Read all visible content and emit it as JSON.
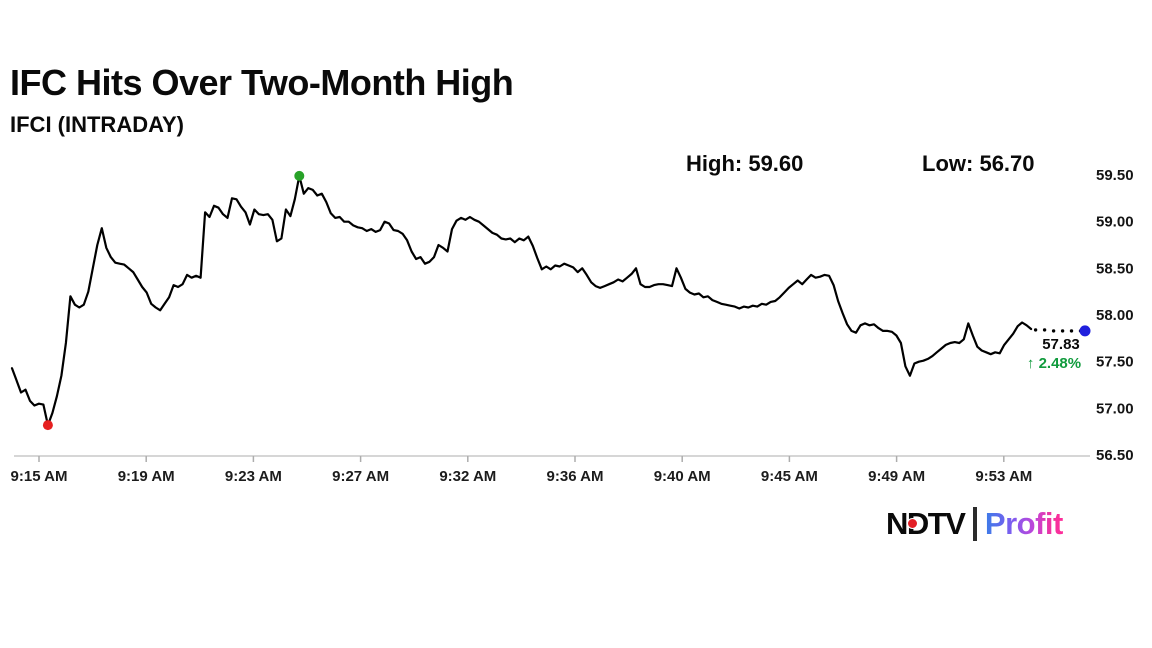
{
  "header": {
    "title": "IFC Hits Over Two-Month High",
    "subtitle": "IFCI (INTRADAY)"
  },
  "stats": {
    "high_label": "High:",
    "high_value": "59.60",
    "low_label": "Low:",
    "low_value": "56.70"
  },
  "annotation": {
    "last_price": "57.83",
    "change_arrow": "↑",
    "change_percent": "2.48%"
  },
  "logo": {
    "brand": "NDTV",
    "product": "Profit"
  },
  "colors": {
    "line": "#000000",
    "axis_line": "#c9c9c9",
    "tick": "#adadad",
    "low_marker": "#e62020",
    "high_marker": "#28a228",
    "end_marker": "#2020dd",
    "change_green": "#119b3d",
    "label_text": "#1a1a1a",
    "profit_gradient": [
      "#3b7ce8",
      "#a14ce8",
      "#f0329e",
      "#ff2d9a"
    ]
  },
  "chart_data": {
    "type": "line",
    "title": "IFCI (INTRADAY)",
    "xlabel": "",
    "ylabel": "",
    "ylim": [
      56.5,
      59.5
    ],
    "grid": false,
    "legend": "none",
    "y_ticks": [
      "59.50",
      "59.00",
      "58.50",
      "58.00",
      "57.50",
      "57.00",
      "56.50"
    ],
    "x_ticks": [
      "9:15 AM",
      "9:19 AM",
      "9:23 AM",
      "9:27 AM",
      "9:32 AM",
      "9:36 AM",
      "9:40 AM",
      "9:45 AM",
      "9:49 AM",
      "9:53 AM"
    ],
    "session_high": 59.6,
    "session_low": 56.7,
    "last_price": 57.83,
    "change_percent": 2.48,
    "dotted_tail": 12,
    "prices": [
      57.43,
      57.3,
      57.17,
      57.2,
      57.08,
      57.03,
      57.05,
      57.04,
      56.82,
      56.95,
      57.13,
      57.35,
      57.7,
      58.2,
      58.11,
      58.08,
      58.11,
      58.25,
      58.5,
      58.75,
      58.93,
      58.72,
      58.62,
      58.56,
      58.55,
      58.54,
      58.5,
      58.46,
      58.38,
      58.3,
      58.24,
      58.12,
      58.08,
      58.05,
      58.12,
      58.19,
      58.32,
      58.3,
      58.33,
      58.43,
      58.4,
      58.42,
      58.4,
      59.1,
      59.05,
      59.17,
      59.15,
      59.08,
      59.04,
      59.25,
      59.24,
      59.16,
      59.1,
      58.97,
      59.13,
      59.08,
      59.07,
      59.08,
      59.02,
      58.79,
      58.82,
      59.13,
      59.06,
      59.24,
      59.49,
      59.3,
      59.36,
      59.34,
      59.28,
      59.3,
      59.21,
      59.09,
      59.04,
      59.05,
      59.0,
      59.0,
      58.96,
      58.94,
      58.93,
      58.9,
      58.92,
      58.89,
      58.91,
      59.0,
      58.98,
      58.91,
      58.9,
      58.87,
      58.8,
      58.68,
      58.6,
      58.62,
      58.55,
      58.57,
      58.62,
      58.75,
      58.72,
      58.68,
      58.92,
      59.01,
      59.04,
      59.02,
      59.05,
      59.02,
      59.0,
      58.96,
      58.92,
      58.88,
      58.86,
      58.82,
      58.81,
      58.82,
      58.78,
      58.82,
      58.8,
      58.84,
      58.74,
      58.61,
      58.49,
      58.52,
      58.49,
      58.53,
      58.52,
      58.55,
      58.53,
      58.51,
      58.46,
      58.5,
      58.43,
      58.35,
      58.31,
      58.29,
      58.31,
      58.33,
      58.35,
      58.38,
      58.36,
      58.4,
      58.44,
      58.5,
      58.33,
      58.3,
      58.3,
      58.32,
      58.33,
      58.33,
      58.32,
      58.31,
      58.5,
      58.4,
      58.28,
      58.24,
      58.22,
      58.23,
      58.19,
      58.2,
      58.16,
      58.14,
      58.12,
      58.11,
      58.1,
      58.09,
      58.07,
      58.09,
      58.08,
      58.1,
      58.09,
      58.12,
      58.11,
      58.14,
      58.15,
      58.19,
      58.24,
      58.29,
      58.33,
      58.37,
      58.33,
      58.38,
      58.43,
      58.4,
      58.41,
      58.43,
      58.42,
      58.32,
      58.15,
      58.02,
      57.9,
      57.83,
      57.81,
      57.89,
      57.91,
      57.89,
      57.9,
      57.86,
      57.83,
      57.83,
      57.82,
      57.78,
      57.7,
      57.45,
      57.35,
      57.48,
      57.5,
      57.51,
      57.53,
      57.56,
      57.6,
      57.64,
      57.68,
      57.7,
      57.71,
      57.7,
      57.74,
      57.91,
      57.78,
      57.66,
      57.62,
      57.6,
      57.58,
      57.6,
      57.59,
      57.68,
      57.74,
      57.8,
      57.88,
      57.92,
      57.89,
      57.85,
      57.84,
      57.85,
      57.84,
      57.84,
      57.83,
      57.84,
      57.83,
      57.84,
      57.83,
      57.84,
      57.83,
      57.83
    ]
  }
}
